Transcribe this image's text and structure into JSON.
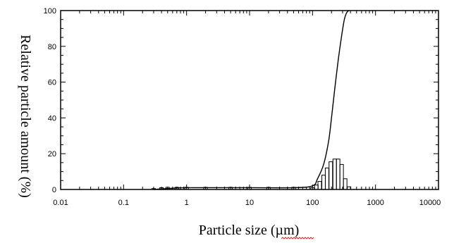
{
  "chart_data": {
    "type": "bar",
    "title": "",
    "xlabel": "Particle size (µm)",
    "ylabel": "Relative particle amount (%)",
    "xscale": "log",
    "xlim": [
      0.01,
      10000
    ],
    "ylim": [
      0,
      100
    ],
    "x_tick_labels": [
      "0.01",
      "0.1",
      "1",
      "10",
      "100",
      "1000",
      "10000"
    ],
    "y_tick_labels": [
      "0",
      "20",
      "40",
      "60",
      "80",
      "100"
    ],
    "grid": false,
    "legend": "none",
    "series": [
      {
        "type": "bar",
        "x": [
          0.3,
          0.4,
          0.5,
          0.7,
          1,
          2,
          5,
          10,
          20,
          50,
          100,
          115,
          130,
          150,
          170,
          195,
          225,
          255,
          290,
          330,
          380
        ],
        "values": [
          0.5,
          1.0,
          1.2,
          1.2,
          1.2,
          1.2,
          1.2,
          1.2,
          1.2,
          1.2,
          1.0,
          2.5,
          4.5,
          8.0,
          12.0,
          15.5,
          17.0,
          17.0,
          14.0,
          6.0,
          1.5
        ]
      },
      {
        "type": "line",
        "x": [
          0.3,
          0.5,
          1,
          10,
          50,
          100,
          120,
          150,
          180,
          200,
          225,
          255,
          290,
          320,
          350,
          380
        ],
        "values": [
          0,
          0.5,
          1,
          1,
          1,
          2,
          6,
          14,
          27,
          40,
          56,
          72,
          86,
          95,
          99,
          100
        ]
      }
    ],
    "colors": {
      "line": "#000000",
      "bar_stroke": "#000000",
      "background": "#ffffff"
    }
  }
}
